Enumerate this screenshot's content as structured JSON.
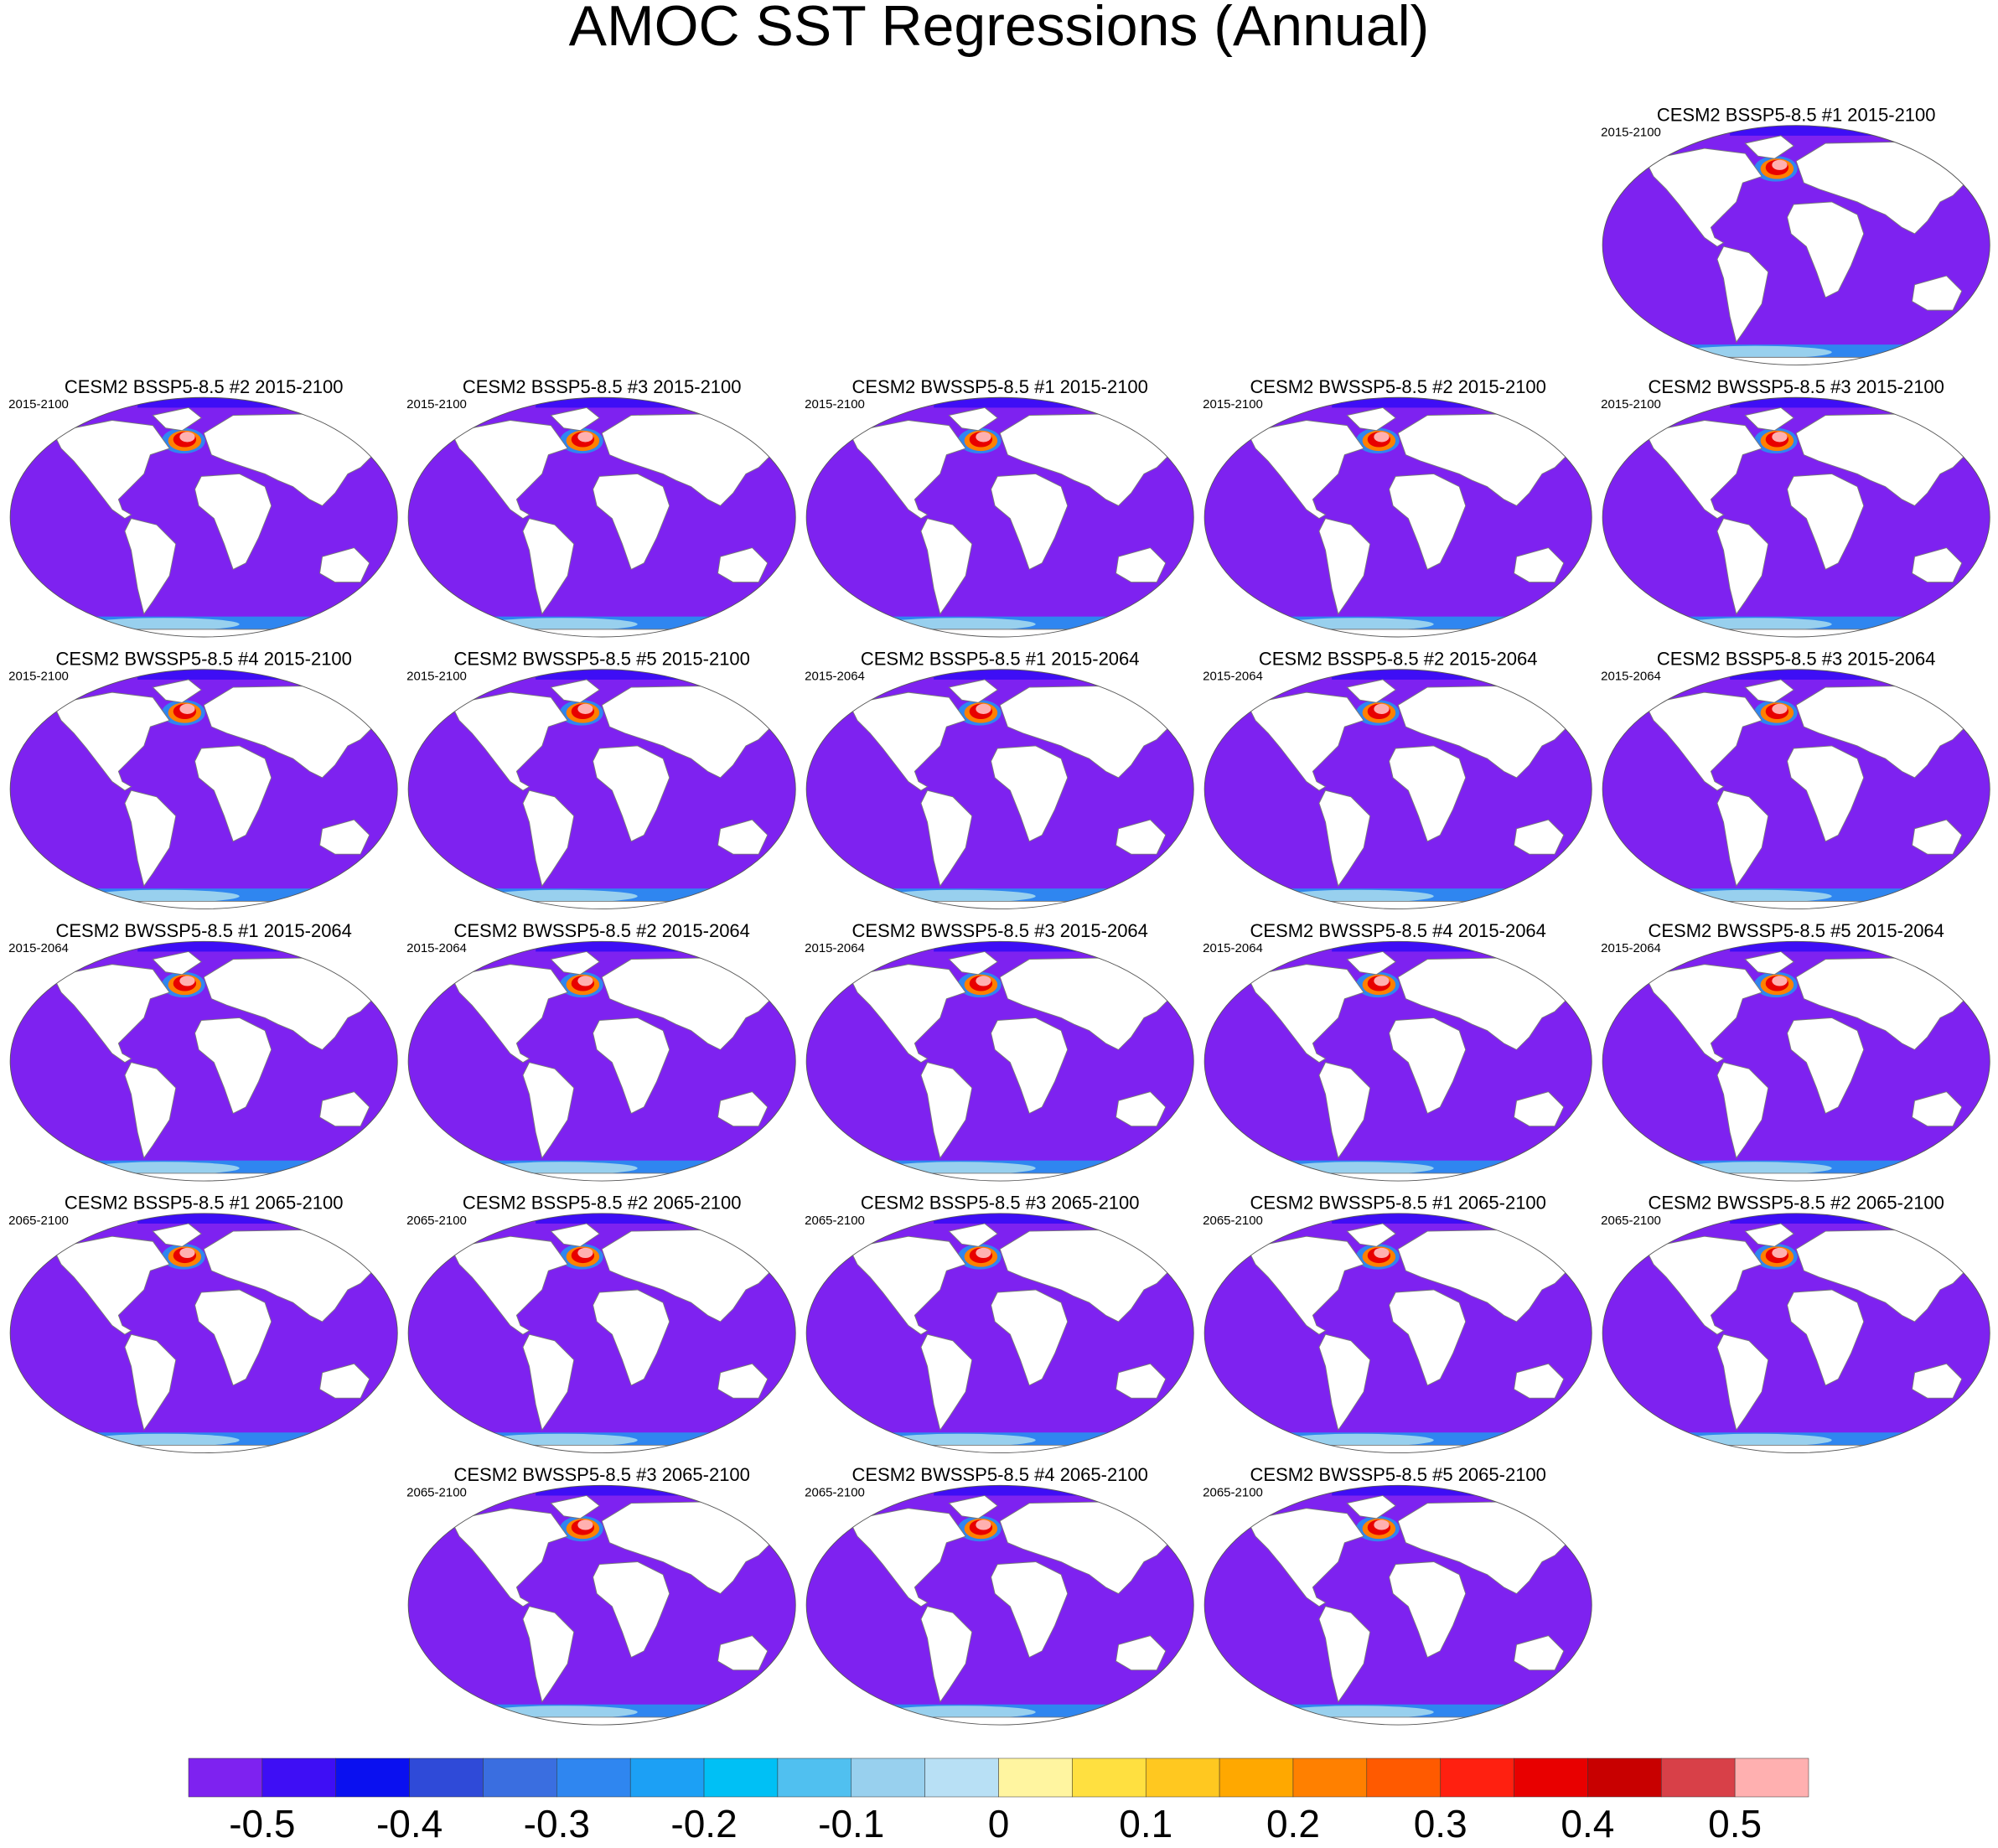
{
  "title": "AMOC SST Regressions (Annual)",
  "panels": [
    {
      "title": "CESM2 BSSP5-8.5 #1 2015-2100",
      "subtitle": "2015-2100"
    },
    {
      "title": "CESM2 BSSP5-8.5 #2 2015-2100",
      "subtitle": "2015-2100"
    },
    {
      "title": "CESM2 BSSP5-8.5 #3 2015-2100",
      "subtitle": "2015-2100"
    },
    {
      "title": "CESM2 BWSSP5-8.5 #1 2015-2100",
      "subtitle": "2015-2100"
    },
    {
      "title": "CESM2 BWSSP5-8.5 #2 2015-2100",
      "subtitle": "2015-2100"
    },
    {
      "title": "CESM2 BWSSP5-8.5 #3 2015-2100",
      "subtitle": "2015-2100"
    },
    {
      "title": "CESM2 BWSSP5-8.5 #4 2015-2100",
      "subtitle": "2015-2100"
    },
    {
      "title": "CESM2 BWSSP5-8.5 #5 2015-2100",
      "subtitle": "2015-2100"
    },
    {
      "title": "CESM2 BSSP5-8.5 #1 2015-2064",
      "subtitle": "2015-2064"
    },
    {
      "title": "CESM2 BSSP5-8.5 #2 2015-2064",
      "subtitle": "2015-2064"
    },
    {
      "title": "CESM2 BSSP5-8.5 #3 2015-2064",
      "subtitle": "2015-2064"
    },
    {
      "title": "CESM2 BWSSP5-8.5 #1 2015-2064",
      "subtitle": "2015-2064"
    },
    {
      "title": "CESM2 BWSSP5-8.5 #2 2015-2064",
      "subtitle": "2015-2064"
    },
    {
      "title": "CESM2 BWSSP5-8.5 #3 2015-2064",
      "subtitle": "2015-2064"
    },
    {
      "title": "CESM2 BWSSP5-8.5 #4 2015-2064",
      "subtitle": "2015-2064"
    },
    {
      "title": "CESM2 BWSSP5-8.5 #5 2015-2064",
      "subtitle": "2015-2064"
    },
    {
      "title": "CESM2 BSSP5-8.5 #1 2065-2100",
      "subtitle": "2065-2100"
    },
    {
      "title": "CESM2 BSSP5-8.5 #2 2065-2100",
      "subtitle": "2065-2100"
    },
    {
      "title": "CESM2 BSSP5-8.5 #3 2065-2100",
      "subtitle": "2065-2100"
    },
    {
      "title": "CESM2 BWSSP5-8.5 #1 2065-2100",
      "subtitle": "2065-2100"
    },
    {
      "title": "CESM2 BWSSP5-8.5 #2 2065-2100",
      "subtitle": "2065-2100"
    },
    {
      "title": "CESM2 BWSSP5-8.5 #3 2065-2100",
      "subtitle": "2065-2100"
    },
    {
      "title": "CESM2 BWSSP5-8.5 #4 2065-2100",
      "subtitle": "2065-2100"
    },
    {
      "title": "CESM2 BWSSP5-8.5 #5 2065-2100",
      "subtitle": "2065-2100"
    }
  ],
  "colorbar": {
    "colors": [
      "#7e22f0",
      "#3e0ef5",
      "#0a10f0",
      "#2f4ad8",
      "#3a6ee0",
      "#2f86f0",
      "#1ca0f5",
      "#00c0f5",
      "#50c0f0",
      "#98d0ee",
      "#b8e0f5",
      "#fff5a0",
      "#ffe040",
      "#ffc820",
      "#ffa800",
      "#ff8000",
      "#ff5a00",
      "#ff2010",
      "#e80000",
      "#c80000",
      "#d84048",
      "#ffb0b0"
    ],
    "labels": [
      -0.5,
      -0.4,
      -0.3,
      -0.2,
      -0.1,
      0,
      0.1,
      0.2,
      0.3,
      0.4,
      0.5
    ]
  }
}
